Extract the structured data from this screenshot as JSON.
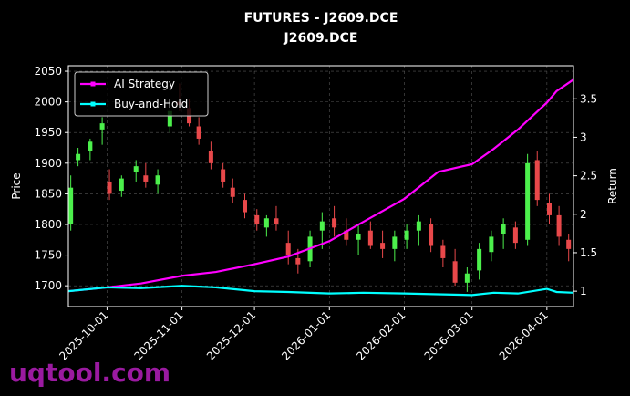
{
  "chart_data": {
    "type": "candlestick",
    "title": "FUTURES - J2609.DCE",
    "subtitle": "J2609.DCE",
    "ylabel": "Price",
    "y2label": "Return",
    "watermark": "uqtool.com",
    "xlim": [
      "2025-09-15",
      "2026-04-12"
    ],
    "xticks": [
      "2025-10-01",
      "2025-11-01",
      "2025-12-01",
      "2026-01-01",
      "2026-02-01",
      "2026-03-01",
      "2026-04-01"
    ],
    "ylim": [
      1666,
      2059
    ],
    "yticks": [
      1700,
      1750,
      1800,
      1850,
      1900,
      1950,
      2000,
      2050
    ],
    "y2lim": [
      0.8,
      3.93
    ],
    "y2ticks": [
      1.0,
      1.5,
      2.0,
      2.5,
      3.0,
      3.5
    ],
    "grid": true,
    "legend": "upper left",
    "up_color": "#4cf04c",
    "down_color": "#e8484a",
    "candles": {
      "dates": [
        "2025-09-16",
        "2025-09-19",
        "2025-09-24",
        "2025-09-29",
        "2025-10-02",
        "2025-10-07",
        "2025-10-13",
        "2025-10-17",
        "2025-10-22",
        "2025-10-27",
        "2025-10-31",
        "2025-11-04",
        "2025-11-08",
        "2025-11-13",
        "2025-11-18",
        "2025-11-22",
        "2025-11-27",
        "2025-12-02",
        "2025-12-06",
        "2025-12-10",
        "2025-12-15",
        "2025-12-19",
        "2025-12-24",
        "2025-12-29",
        "2026-01-03",
        "2026-01-08",
        "2026-01-13",
        "2026-01-18",
        "2026-01-23",
        "2026-01-28",
        "2026-02-02",
        "2026-02-07",
        "2026-02-12",
        "2026-02-17",
        "2026-02-22",
        "2026-02-27",
        "2026-03-04",
        "2026-03-09",
        "2026-03-14",
        "2026-03-19",
        "2026-03-24",
        "2026-03-28",
        "2026-04-02",
        "2026-04-06",
        "2026-04-10"
      ],
      "open": [
        1800,
        1905,
        1920,
        1955,
        1870,
        1855,
        1885,
        1880,
        1865,
        1960,
        2000,
        1990,
        1960,
        1920,
        1890,
        1860,
        1840,
        1815,
        1795,
        1810,
        1770,
        1745,
        1740,
        1790,
        1810,
        1790,
        1775,
        1790,
        1770,
        1760,
        1775,
        1790,
        1800,
        1765,
        1740,
        1705,
        1725,
        1755,
        1785,
        1795,
        1775,
        1905,
        1835,
        1815,
        1775
      ],
      "high": [
        1880,
        1925,
        1940,
        1975,
        1890,
        1880,
        1905,
        1900,
        1890,
        1990,
        2030,
        2005,
        1975,
        1935,
        1900,
        1875,
        1850,
        1825,
        1815,
        1830,
        1790,
        1760,
        1790,
        1820,
        1830,
        1810,
        1800,
        1805,
        1790,
        1790,
        1800,
        1815,
        1810,
        1775,
        1760,
        1730,
        1770,
        1790,
        1810,
        1805,
        1915,
        1920,
        1850,
        1830,
        1785
      ],
      "low": [
        1790,
        1895,
        1905,
        1930,
        1840,
        1845,
        1870,
        1860,
        1850,
        1950,
        1985,
        1960,
        1930,
        1890,
        1860,
        1835,
        1810,
        1790,
        1780,
        1790,
        1735,
        1720,
        1730,
        1760,
        1780,
        1765,
        1750,
        1760,
        1745,
        1740,
        1760,
        1765,
        1755,
        1730,
        1700,
        1690,
        1710,
        1740,
        1760,
        1760,
        1765,
        1830,
        1800,
        1765,
        1740
      ],
      "close": [
        1860,
        1915,
        1935,
        1965,
        1850,
        1875,
        1895,
        1870,
        1880,
        1985,
        1995,
        1965,
        1940,
        1900,
        1870,
        1845,
        1820,
        1800,
        1810,
        1800,
        1750,
        1735,
        1780,
        1805,
        1795,
        1775,
        1785,
        1765,
        1760,
        1780,
        1790,
        1805,
        1765,
        1745,
        1705,
        1720,
        1760,
        1780,
        1800,
        1770,
        1900,
        1840,
        1815,
        1780,
        1760
      ]
    },
    "x": [
      "2025-09-15",
      "2025-10-01",
      "2025-10-15",
      "2025-11-01",
      "2025-11-15",
      "2025-12-01",
      "2025-12-15",
      "2026-01-01",
      "2026-01-15",
      "2026-02-01",
      "2026-02-15",
      "2026-03-01",
      "2026-03-10",
      "2026-03-20",
      "2026-04-01",
      "2026-04-05",
      "2026-04-12"
    ],
    "series": [
      {
        "name": "AI Strategy",
        "color": "#ff00ff",
        "axis": "y2",
        "values": [
          1.0,
          1.05,
          1.1,
          1.2,
          1.25,
          1.35,
          1.45,
          1.65,
          1.9,
          2.2,
          2.55,
          2.65,
          2.85,
          3.1,
          3.45,
          3.6,
          3.75
        ]
      },
      {
        "name": "Buy-and-Hold",
        "color": "#00ffff",
        "axis": "y2",
        "values": [
          1.0,
          1.05,
          1.04,
          1.07,
          1.05,
          1.0,
          0.99,
          0.97,
          0.98,
          0.97,
          0.96,
          0.95,
          0.98,
          0.97,
          1.03,
          0.99,
          0.98
        ]
      }
    ]
  }
}
